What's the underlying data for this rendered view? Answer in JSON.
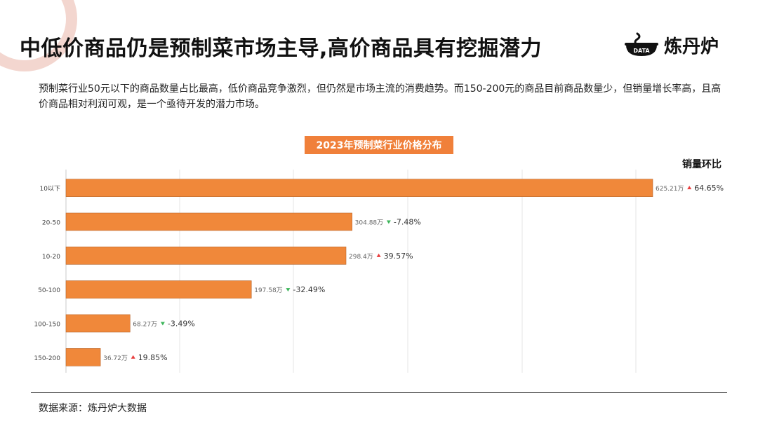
{
  "header": {
    "title": "中低价商品仍是预制菜市场主导,高价商品具有挖掘潜力",
    "logo_text": "炼丹炉",
    "logo_badge": "DATA"
  },
  "description": "预制菜行业50元以下的商品数量占比最高，低价商品竞争激烈，但仍然是市场主流的消费趋势。而150-200元的商品目前商品数量少，但销量增长率高，且高价商品相对利润可观，是一个亟待开发的潜力市场。",
  "chart_data": {
    "type": "bar",
    "orientation": "horizontal",
    "title": "2023年预制菜行业价格分布",
    "ratio_header": "销量环比",
    "categories": [
      "10以下",
      "20-50",
      "10-20",
      "50-100",
      "100-150",
      "150-200"
    ],
    "values": [
      625.21,
      304.88,
      298.4,
      197.58,
      68.27,
      36.72
    ],
    "value_labels": [
      "625.21万",
      "304.88万",
      "298.4万",
      "197.58万",
      "68.27万",
      "36.72万"
    ],
    "ratios": [
      "64.65%",
      "-7.48%",
      "39.57%",
      "-32.49%",
      "-3.49%",
      "19.85%"
    ],
    "ratio_up": [
      true,
      false,
      true,
      false,
      false,
      true
    ],
    "bar_color": "#f0883a",
    "up_color": "#e83c3c",
    "down_color": "#3cb55a",
    "grid": true
  },
  "footer": {
    "source": "数据来源：炼丹炉大数据"
  }
}
